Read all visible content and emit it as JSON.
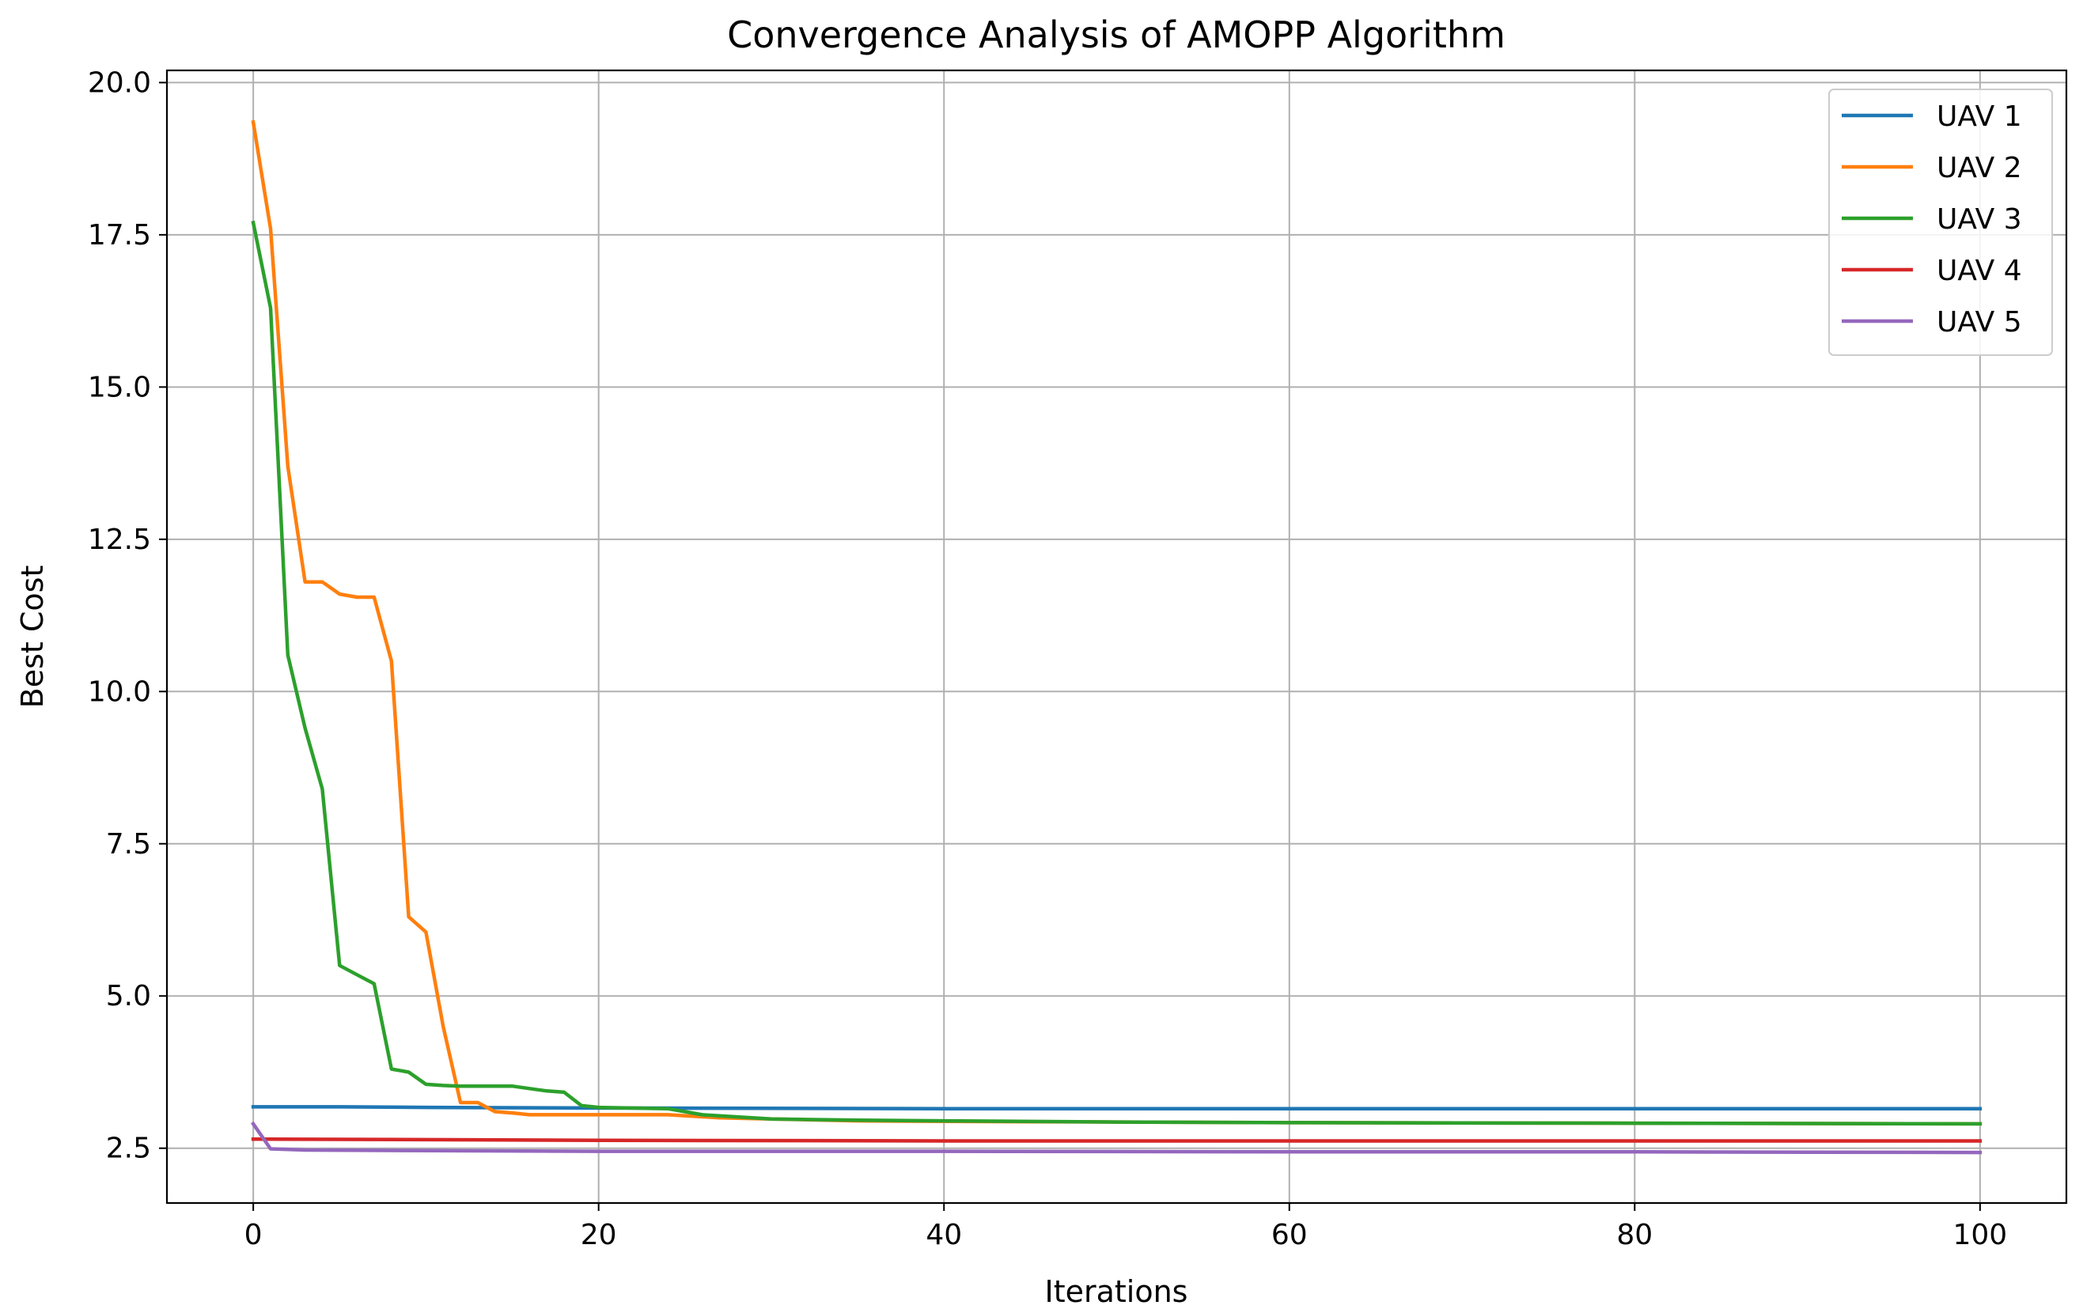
{
  "chart_data": {
    "type": "line",
    "title": "Convergence Analysis of AMOPP Algorithm",
    "xlabel": "Iterations",
    "ylabel": "Best Cost",
    "xlim": [
      -5,
      105
    ],
    "ylim": [
      1.6,
      20.2
    ],
    "grid": true,
    "legend_position": "top-right",
    "x_ticks": [
      0,
      20,
      40,
      60,
      80,
      100
    ],
    "x_tick_labels": [
      "0",
      "20",
      "40",
      "60",
      "80",
      "100"
    ],
    "y_ticks": [
      2.5,
      5.0,
      7.5,
      10.0,
      12.5,
      15.0,
      17.5,
      20.0
    ],
    "y_tick_labels": [
      "2.5",
      "5.0",
      "7.5",
      "10.0",
      "12.5",
      "15.0",
      "17.5",
      "20.0"
    ],
    "series": [
      {
        "name": "UAV 1",
        "color": "#1f77b4",
        "points": [
          [
            0,
            3.18
          ],
          [
            5,
            3.18
          ],
          [
            10,
            3.17
          ],
          [
            20,
            3.16
          ],
          [
            40,
            3.15
          ],
          [
            60,
            3.15
          ],
          [
            80,
            3.15
          ],
          [
            100,
            3.15
          ]
        ]
      },
      {
        "name": "UAV 2",
        "color": "#ff7f0e",
        "points": [
          [
            0,
            19.35
          ],
          [
            1,
            17.6
          ],
          [
            2,
            13.7
          ],
          [
            3,
            11.8
          ],
          [
            4,
            11.8
          ],
          [
            5,
            11.6
          ],
          [
            6,
            11.55
          ],
          [
            7,
            11.55
          ],
          [
            8,
            10.5
          ],
          [
            9,
            6.3
          ],
          [
            10,
            6.05
          ],
          [
            11,
            4.5
          ],
          [
            12,
            3.25
          ],
          [
            13,
            3.25
          ],
          [
            14,
            3.1
          ],
          [
            15,
            3.08
          ],
          [
            16,
            3.05
          ],
          [
            20,
            3.05
          ],
          [
            24,
            3.05
          ],
          [
            27,
            3.0
          ],
          [
            30,
            2.98
          ],
          [
            35,
            2.95
          ],
          [
            40,
            2.94
          ],
          [
            50,
            2.93
          ],
          [
            60,
            2.92
          ],
          [
            80,
            2.91
          ],
          [
            100,
            2.9
          ]
        ]
      },
      {
        "name": "UAV 3",
        "color": "#2ca02c",
        "points": [
          [
            0,
            17.7
          ],
          [
            1,
            16.3
          ],
          [
            2,
            10.6
          ],
          [
            3,
            9.4
          ],
          [
            4,
            8.4
          ],
          [
            5,
            5.5
          ],
          [
            6,
            5.35
          ],
          [
            7,
            5.2
          ],
          [
            8,
            3.8
          ],
          [
            9,
            3.75
          ],
          [
            10,
            3.55
          ],
          [
            11,
            3.53
          ],
          [
            12,
            3.52
          ],
          [
            13,
            3.52
          ],
          [
            15,
            3.52
          ],
          [
            16,
            3.48
          ],
          [
            17,
            3.44
          ],
          [
            18,
            3.42
          ],
          [
            19,
            3.2
          ],
          [
            20,
            3.17
          ],
          [
            24,
            3.15
          ],
          [
            26,
            3.05
          ],
          [
            30,
            2.98
          ],
          [
            35,
            2.96
          ],
          [
            40,
            2.95
          ],
          [
            50,
            2.93
          ],
          [
            60,
            2.92
          ],
          [
            80,
            2.91
          ],
          [
            100,
            2.9
          ]
        ]
      },
      {
        "name": "UAV 4",
        "color": "#d62728",
        "points": [
          [
            0,
            2.65
          ],
          [
            1,
            2.65
          ],
          [
            10,
            2.64
          ],
          [
            20,
            2.63
          ],
          [
            40,
            2.62
          ],
          [
            60,
            2.62
          ],
          [
            80,
            2.62
          ],
          [
            100,
            2.62
          ]
        ]
      },
      {
        "name": "UAV 5",
        "color": "#9467bd",
        "points": [
          [
            0,
            2.9
          ],
          [
            1,
            2.49
          ],
          [
            3,
            2.47
          ],
          [
            10,
            2.46
          ],
          [
            20,
            2.45
          ],
          [
            40,
            2.45
          ],
          [
            60,
            2.44
          ],
          [
            80,
            2.44
          ],
          [
            100,
            2.43
          ]
        ]
      }
    ]
  }
}
